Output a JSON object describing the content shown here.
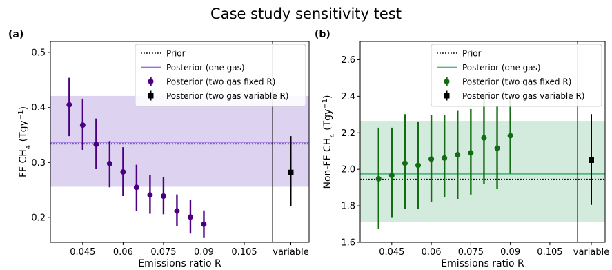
{
  "figure": {
    "title": "Case study sensitivity test"
  },
  "chart_data": [
    {
      "type": "scatter",
      "panel_label": "(a)",
      "xlabel": "Emissions ratio R",
      "ylabel": "FF CH",
      "ylabel_sub": "4",
      "ylabel_unit": " (Tgy",
      "ylabel_sup": "−1",
      "ylabel_close": ")",
      "xlim": [
        0.033,
        0.1155
      ],
      "ylim": [
        0.155,
        0.52
      ],
      "xticks": [
        0.045,
        0.06,
        0.075,
        0.09,
        0.105
      ],
      "xtick_labels": [
        "0.045",
        "0.06",
        "0.075",
        "0.09",
        "0.105"
      ],
      "yticks": [
        0.2,
        0.3,
        0.4,
        0.5
      ],
      "ytick_labels": [
        "0.2",
        "0.3",
        "0.4",
        "0.5"
      ],
      "extra_category": "variable",
      "prior": 0.334,
      "posterior_one_gas": {
        "value": 0.337,
        "lower": 0.256,
        "upper": 0.421
      },
      "fixed_R": {
        "x": [
          0.04,
          0.045,
          0.05,
          0.055,
          0.06,
          0.065,
          0.07,
          0.075,
          0.08,
          0.085,
          0.09
        ],
        "y": [
          0.405,
          0.368,
          0.333,
          0.298,
          0.283,
          0.255,
          0.241,
          0.239,
          0.212,
          0.201,
          0.188
        ],
        "lower": [
          0.348,
          0.323,
          0.288,
          0.255,
          0.239,
          0.212,
          0.207,
          0.206,
          0.184,
          0.171,
          0.164
        ],
        "upper": [
          0.454,
          0.416,
          0.38,
          0.339,
          0.328,
          0.296,
          0.277,
          0.273,
          0.242,
          0.232,
          0.213
        ]
      },
      "variable_R": {
        "y": 0.282,
        "lower": 0.221,
        "upper": 0.348
      },
      "legend": [
        "Prior",
        "Posterior (one gas)",
        "Posterior (two gas fixed R)",
        "Posterior (two gas variable R)"
      ],
      "legend_position": "top-right",
      "colors": {
        "series": "#4b0082",
        "band": "#ddd3f0",
        "line": "#9370db",
        "variable": "#000000"
      }
    },
    {
      "type": "scatter",
      "panel_label": "(b)",
      "xlabel": "Emissions ratio R",
      "ylabel": "Non-FF CH",
      "ylabel_sub": "4",
      "ylabel_unit": " (Tgy",
      "ylabel_sup": "−1",
      "ylabel_close": ")",
      "xlim": [
        0.033,
        0.1155
      ],
      "ylim": [
        1.6,
        2.7
      ],
      "xticks": [
        0.045,
        0.06,
        0.075,
        0.09,
        0.105
      ],
      "xtick_labels": [
        "0.045",
        "0.06",
        "0.075",
        "0.09",
        "0.105"
      ],
      "yticks": [
        1.6,
        1.8,
        2.0,
        2.2,
        2.4,
        2.6
      ],
      "ytick_labels": [
        "1.6",
        "1.8",
        "2.0",
        "2.2",
        "2.4",
        "2.6"
      ],
      "extra_category": "variable",
      "prior": 1.945,
      "posterior_one_gas": {
        "value": 1.975,
        "lower": 1.71,
        "upper": 2.265
      },
      "fixed_R": {
        "x": [
          0.04,
          0.045,
          0.05,
          0.055,
          0.06,
          0.065,
          0.07,
          0.075,
          0.08,
          0.085,
          0.09
        ],
        "y": [
          1.948,
          1.966,
          2.033,
          2.022,
          2.056,
          2.062,
          2.08,
          2.09,
          2.172,
          2.116,
          2.184
        ],
        "lower": [
          1.672,
          1.738,
          1.782,
          1.785,
          1.822,
          1.848,
          1.838,
          1.862,
          1.918,
          1.895,
          1.975
        ],
        "upper": [
          2.228,
          2.228,
          2.302,
          2.262,
          2.296,
          2.296,
          2.32,
          2.33,
          2.41,
          2.346,
          2.398
        ]
      },
      "variable_R": {
        "y": 2.05,
        "lower": 1.805,
        "upper": 2.302
      },
      "legend": [
        "Prior",
        "Posterior (one gas)",
        "Posterior (two gas fixed R)",
        "Posterior (two gas variable R)"
      ],
      "legend_position": "top-right",
      "colors": {
        "series": "#136b13",
        "band": "#d3ebdc",
        "line": "#4fb882",
        "variable": "#000000"
      }
    }
  ]
}
